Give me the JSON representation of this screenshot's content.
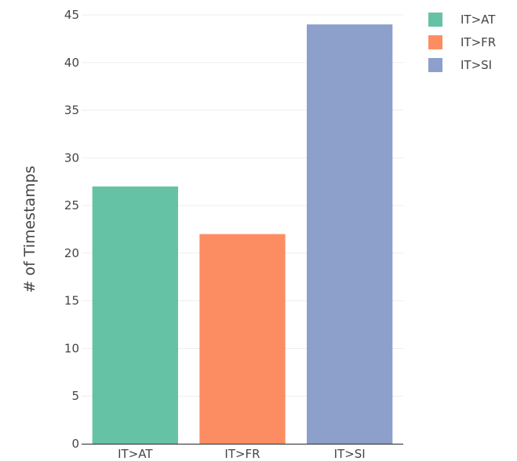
{
  "chart_data": {
    "type": "bar",
    "categories": [
      "IT>AT",
      "IT>FR",
      "IT>SI"
    ],
    "values": [
      27,
      22,
      44
    ],
    "colors": [
      "#66c2a5",
      "#fc8d62",
      "#8da0cb"
    ],
    "ylabel": "# of Timestamps",
    "xlabel": "",
    "ylim": [
      0,
      45
    ],
    "yticks": [
      0,
      5,
      10,
      15,
      20,
      25,
      30,
      35,
      40,
      45
    ],
    "grid": true,
    "legend": {
      "position": "top-right",
      "entries": [
        "IT>AT",
        "IT>FR",
        "IT>SI"
      ]
    }
  }
}
